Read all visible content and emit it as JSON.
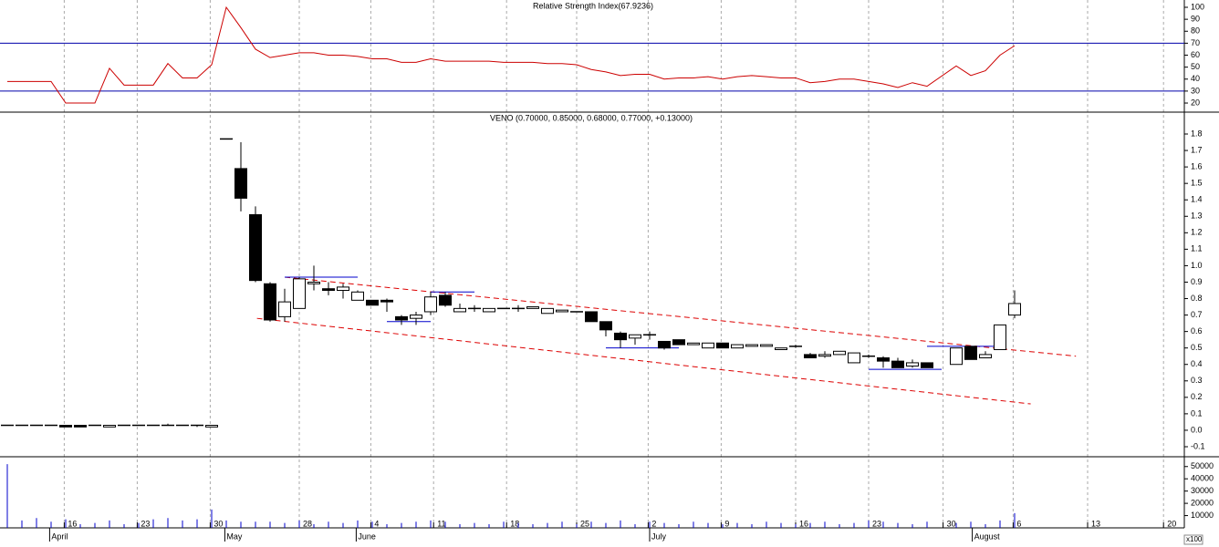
{
  "chart_data": [
    {
      "type": "line",
      "title": "Relative Strength Index(67.9236)",
      "x": [
        0,
        1,
        2,
        3,
        4,
        5,
        6,
        7,
        8,
        9,
        10,
        11,
        12,
        13,
        14,
        15,
        16,
        17,
        18,
        19,
        20,
        21,
        22,
        23,
        24,
        25,
        26,
        27,
        28,
        29,
        30,
        31,
        32,
        33,
        34,
        35,
        36,
        37,
        38,
        39,
        40,
        41,
        42,
        43,
        44,
        45,
        46,
        47,
        48,
        49,
        50,
        51,
        52,
        53,
        54,
        55,
        56,
        57,
        58,
        59,
        60,
        61,
        62,
        63,
        65,
        66,
        67,
        68,
        69
      ],
      "values": [
        38,
        38,
        38,
        38,
        20,
        20,
        20,
        49,
        35,
        35,
        35,
        53,
        41,
        41,
        52,
        100,
        83,
        65,
        58,
        60,
        62,
        62,
        60,
        60,
        59,
        57,
        57,
        54,
        54,
        57,
        55,
        55,
        55,
        55,
        54,
        54,
        54,
        53,
        53,
        52,
        48,
        46,
        43,
        44,
        44,
        40,
        41,
        41,
        42,
        40,
        42,
        43,
        42,
        41,
        41,
        37,
        38,
        40,
        40,
        38,
        36,
        33,
        37,
        34,
        51,
        43,
        47,
        60,
        67.9236
      ],
      "color": "#cc0000",
      "hlines": [
        70,
        30
      ],
      "hline_color": "#0000aa",
      "ylim": [
        12.4,
        106.1
      ],
      "yticks": [
        20,
        30,
        40,
        50,
        60,
        70,
        80,
        90,
        100
      ],
      "xlim": [
        -0.5,
        80.625
      ]
    },
    {
      "type": "candlestick",
      "title": "VENO (0.70000, 0.85000, 0.68000, 0.77000, +0.13000)",
      "x": [
        0,
        1,
        2,
        3,
        4,
        5,
        6,
        7,
        8,
        9,
        10,
        11,
        12,
        13,
        14,
        15,
        16,
        17,
        18,
        19,
        20,
        21,
        22,
        23,
        24,
        25,
        26,
        27,
        28,
        29,
        30,
        31,
        32,
        33,
        34,
        35,
        36,
        37,
        38,
        39,
        40,
        41,
        42,
        43,
        44,
        45,
        46,
        47,
        48,
        49,
        50,
        51,
        52,
        53,
        54,
        55,
        56,
        57,
        58,
        59,
        60,
        61,
        62,
        63,
        65,
        66,
        67,
        68,
        69
      ],
      "open": [
        0.03,
        0.03,
        0.03,
        0.03,
        0.03,
        0.03,
        0.03,
        0.02,
        0.03,
        0.03,
        0.03,
        0.03,
        0.03,
        0.03,
        0.02,
        1.77,
        1.59,
        1.31,
        0.89,
        0.69,
        0.74,
        0.89,
        0.86,
        0.85,
        0.79,
        0.79,
        0.79,
        0.69,
        0.68,
        0.72,
        0.82,
        0.72,
        0.74,
        0.72,
        0.74,
        0.74,
        0.74,
        0.71,
        0.72,
        0.72,
        0.72,
        0.66,
        0.59,
        0.56,
        0.58,
        0.54,
        0.55,
        0.52,
        0.5,
        0.53,
        0.5,
        0.51,
        0.51,
        0.49,
        0.51,
        0.46,
        0.45,
        0.46,
        0.41,
        0.45,
        0.44,
        0.42,
        0.39,
        0.41,
        0.4,
        0.51,
        0.44,
        0.49,
        0.7
      ],
      "high": [
        0.03,
        0.03,
        0.03,
        0.03,
        0.03,
        0.03,
        0.03,
        0.03,
        0.03,
        0.03,
        0.03,
        0.04,
        0.03,
        0.03,
        0.03,
        1.77,
        1.75,
        1.36,
        0.9,
        0.86,
        0.93,
        1.0,
        0.9,
        0.89,
        0.85,
        0.79,
        0.8,
        0.7,
        0.72,
        0.84,
        0.84,
        0.77,
        0.76,
        0.74,
        0.74,
        0.76,
        0.75,
        0.74,
        0.73,
        0.72,
        0.72,
        0.66,
        0.6,
        0.58,
        0.6,
        0.54,
        0.55,
        0.53,
        0.53,
        0.53,
        0.52,
        0.52,
        0.52,
        0.5,
        0.52,
        0.47,
        0.48,
        0.48,
        0.47,
        0.46,
        0.45,
        0.44,
        0.43,
        0.41,
        0.5,
        0.51,
        0.48,
        0.64,
        0.85
      ],
      "low": [
        0.03,
        0.03,
        0.03,
        0.03,
        0.02,
        0.02,
        0.03,
        0.02,
        0.03,
        0.03,
        0.03,
        0.03,
        0.03,
        0.02,
        0.02,
        1.77,
        1.33,
        0.9,
        0.66,
        0.66,
        0.74,
        0.85,
        0.82,
        0.8,
        0.79,
        0.76,
        0.72,
        0.64,
        0.64,
        0.7,
        0.75,
        0.72,
        0.72,
        0.72,
        0.74,
        0.72,
        0.74,
        0.71,
        0.72,
        0.72,
        0.66,
        0.57,
        0.5,
        0.52,
        0.55,
        0.49,
        0.52,
        0.52,
        0.5,
        0.5,
        0.5,
        0.51,
        0.51,
        0.49,
        0.5,
        0.44,
        0.44,
        0.46,
        0.41,
        0.44,
        0.38,
        0.38,
        0.38,
        0.38,
        0.4,
        0.43,
        0.44,
        0.49,
        0.68
      ],
      "close": [
        0.03,
        0.03,
        0.03,
        0.03,
        0.02,
        0.02,
        0.03,
        0.03,
        0.03,
        0.03,
        0.03,
        0.03,
        0.03,
        0.03,
        0.03,
        1.77,
        1.41,
        0.91,
        0.67,
        0.78,
        0.92,
        0.9,
        0.85,
        0.87,
        0.84,
        0.76,
        0.78,
        0.67,
        0.7,
        0.81,
        0.76,
        0.74,
        0.74,
        0.74,
        0.74,
        0.74,
        0.75,
        0.74,
        0.73,
        0.72,
        0.66,
        0.61,
        0.55,
        0.58,
        0.58,
        0.5,
        0.52,
        0.53,
        0.53,
        0.5,
        0.52,
        0.52,
        0.52,
        0.5,
        0.51,
        0.44,
        0.46,
        0.48,
        0.47,
        0.45,
        0.42,
        0.38,
        0.41,
        0.38,
        0.5,
        0.43,
        0.46,
        0.64,
        0.77
      ],
      "trendlines": [
        {
          "x": [
            19,
            73.2
          ],
          "y": [
            0.93,
            0.45
          ],
          "color": "#dd0000",
          "style": "dashed"
        },
        {
          "x": [
            17.1,
            70.1
          ],
          "y": [
            0.68,
            0.16
          ],
          "color": "#dd0000",
          "style": "dashed"
        },
        {
          "x": [
            19,
            24
          ],
          "y": [
            0.93,
            0.93
          ],
          "color": "#0000cc",
          "style": "solid"
        },
        {
          "x": [
            29,
            32
          ],
          "y": [
            0.84,
            0.84
          ],
          "color": "#0000cc",
          "style": "solid"
        },
        {
          "x": [
            26,
            29
          ],
          "y": [
            0.66,
            0.66
          ],
          "color": "#0000cc",
          "style": "solid"
        },
        {
          "x": [
            41,
            46
          ],
          "y": [
            0.5,
            0.5
          ],
          "color": "#0000cc",
          "style": "solid"
        },
        {
          "x": [
            59,
            64
          ],
          "y": [
            0.37,
            0.37
          ],
          "color": "#0000cc",
          "style": "solid"
        },
        {
          "x": [
            63,
            68
          ],
          "y": [
            0.51,
            0.51
          ],
          "color": "#0000cc",
          "style": "solid"
        }
      ],
      "ylim": [
        -0.161,
        1.933
      ],
      "yticks": [
        -0.1,
        {
          "value": 0,
          "label": "0.0"
        },
        0.1,
        0.2,
        0.3,
        0.4,
        0.5,
        0.6,
        0.7,
        0.8,
        0.9,
        {
          "value": 1,
          "label": "1.0"
        },
        1.1,
        1.2,
        1.3,
        1.4,
        1.5,
        1.6,
        1.7,
        1.8
      ],
      "xlim": [
        -0.5,
        80.625
      ]
    },
    {
      "type": "bar",
      "x": [
        0,
        1,
        2,
        3,
        4,
        5,
        6,
        7,
        8,
        9,
        10,
        11,
        12,
        13,
        14,
        15,
        16,
        17,
        18,
        19,
        20,
        21,
        22,
        23,
        24,
        25,
        26,
        27,
        28,
        29,
        30,
        31,
        32,
        33,
        34,
        35,
        36,
        37,
        38,
        39,
        40,
        41,
        42,
        43,
        44,
        45,
        46,
        47,
        48,
        49,
        50,
        51,
        52,
        53,
        54,
        55,
        56,
        57,
        58,
        59,
        60,
        61,
        62,
        63,
        65,
        66,
        67,
        68,
        69
      ],
      "values": [
        52000,
        6000,
        8000,
        5000,
        7000,
        3000,
        4000,
        6000,
        3000,
        4000,
        7000,
        8000,
        6000,
        7000,
        15000,
        6000,
        5000,
        5000,
        5000,
        4000,
        6000,
        3000,
        5000,
        4000,
        6000,
        5000,
        3000,
        4000,
        5000,
        6000,
        5000,
        3000,
        4000,
        3000,
        5000,
        4000,
        3000,
        4000,
        5000,
        3000,
        5000,
        4000,
        6000,
        3000,
        5000,
        4000,
        3000,
        5000,
        4000,
        3000,
        4000,
        3000,
        5000,
        4000,
        3000,
        4000,
        5000,
        3000,
        4000,
        6000,
        5000,
        4000,
        3000,
        5000,
        4000,
        5000,
        3000,
        6000,
        12000
      ],
      "color": "#0000cc",
      "ylim": [
        0,
        58000
      ],
      "yticks": [
        10000,
        20000,
        30000,
        40000,
        50000
      ],
      "unit_label": "x100",
      "xlim": [
        -0.5,
        80.625
      ],
      "xticks": [
        {
          "value": 3.9,
          "label": "16"
        },
        {
          "value": 8.9,
          "label": "23"
        },
        {
          "value": 13.9,
          "label": "30"
        },
        {
          "value": 20,
          "label": "28"
        },
        {
          "value": 24.9,
          "label": "4"
        },
        {
          "value": 29.2,
          "label": "11"
        },
        {
          "value": 34.2,
          "label": "18"
        },
        {
          "value": 39,
          "label": "25"
        },
        {
          "value": 43.9,
          "label": "2"
        },
        {
          "value": 48.9,
          "label": "9"
        },
        {
          "value": 54,
          "label": "16"
        },
        {
          "value": 59,
          "label": "23"
        },
        {
          "value": 64.1,
          "label": "30"
        },
        {
          "value": 68.9,
          "label": "6"
        },
        {
          "value": 74,
          "label": "13"
        },
        {
          "value": 79.2,
          "label": "20"
        }
      ],
      "months": [
        {
          "value": 2.9,
          "label": "April"
        },
        {
          "value": 14.9,
          "label": "May"
        },
        {
          "value": 23.9,
          "label": "June"
        },
        {
          "value": 44,
          "label": "July"
        },
        {
          "value": 66.1,
          "label": "August"
        }
      ]
    }
  ]
}
